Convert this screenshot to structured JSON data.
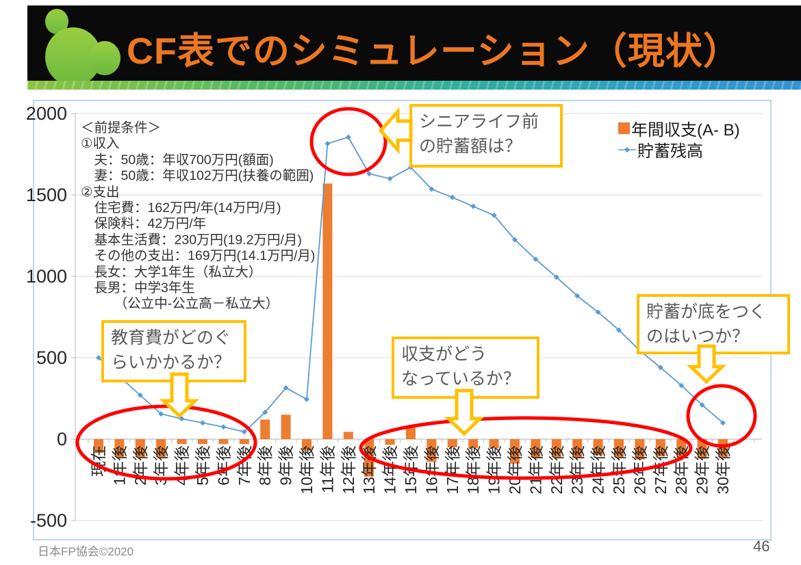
{
  "slide": {
    "title": "CF表でのシミュレーション（現状）",
    "footer": "日本FP協会©2020",
    "page_number": "46"
  },
  "conditions": {
    "lines": [
      "＜前提条件＞",
      "①収入",
      "　夫：50歳：年収700万円(額面)",
      "　妻：50歳：年収102万円(扶養の範囲)",
      "②支出",
      "　住宅費：162万円/年(14万円/月)",
      "　保険料：42万円/年",
      "　基本生活費：230万円(19.2万円/月)",
      "　その他の支出：169万円(14.1万円/月)",
      "　長女：大学1年生（私立大）",
      "　長男：中学3年生",
      "　　　（公立中-公立高－私立大）"
    ]
  },
  "legend": {
    "series1": "年間収支(A- B)",
    "series2": "貯蓄残高"
  },
  "callouts": {
    "senior": {
      "line1": "シニアライフ前",
      "line2": "の貯蓄額は？"
    },
    "education": {
      "line1": "教育費がどのぐ",
      "line2": "らいかかるか？"
    },
    "balance": {
      "line1": "収支がどう",
      "line2": "なっているか？"
    },
    "depletion": {
      "line1": "貯蓄が底をつく",
      "line2": "のはいつか？"
    }
  },
  "colors": {
    "title_orange": "#ED7622",
    "header_black": "#0a0a0a",
    "bar_orange": "#ED7D31",
    "line_blue": "#5B9BD5",
    "callout_gold": "#FFC000",
    "ellipse_red": "#FF0000",
    "gridline_gray": "#D9D9D9",
    "axis_gray": "#BFBFBF",
    "frame_blue": "#BCD6EC",
    "logo_green": "#7DC242"
  },
  "chart_data": {
    "type": "bar",
    "subtype": "bar+line combo",
    "title": "",
    "xlabel": "",
    "ylabel": "",
    "ylim": [
      -500,
      2000
    ],
    "yticks": [
      2000,
      1500,
      1000,
      500,
      0,
      -500
    ],
    "grid": true,
    "legend_position": "top-right",
    "categories": [
      "現在",
      "1年後",
      "2年後",
      "3年後",
      "4年後",
      "5年後",
      "6年後",
      "7年後",
      "8年後",
      "9年後",
      "10年後",
      "11年後",
      "12年後",
      "13年後",
      "14年後",
      "15年後",
      "16年後",
      "17年後",
      "18年後",
      "19年後",
      "20年後",
      "21年後",
      "22年後",
      "23年後",
      "24年後",
      "25年後",
      "26年後",
      "27年後",
      "28年後",
      "29年後",
      "30年後"
    ],
    "series": [
      {
        "name": "年間収支(A- B)",
        "type": "bar",
        "color": "#ED7D31",
        "values": [
          -85,
          -110,
          -110,
          -110,
          -30,
          -30,
          -30,
          -30,
          120,
          150,
          -70,
          1570,
          45,
          -230,
          -35,
          70,
          -140,
          -50,
          -55,
          -55,
          -150,
          -115,
          -110,
          -115,
          -100,
          -110,
          -125,
          -105,
          -110,
          -120,
          -110
        ]
      },
      {
        "name": "貯蓄残高",
        "type": "line",
        "color": "#5B9BD5",
        "values": [
          500,
          385,
          270,
          155,
          125,
          100,
          75,
          45,
          165,
          315,
          245,
          1815,
          1855,
          1630,
          1600,
          1670,
          1535,
          1485,
          1430,
          1375,
          1225,
          1105,
          995,
          880,
          780,
          670,
          545,
          440,
          330,
          210,
          100
        ]
      }
    ]
  }
}
